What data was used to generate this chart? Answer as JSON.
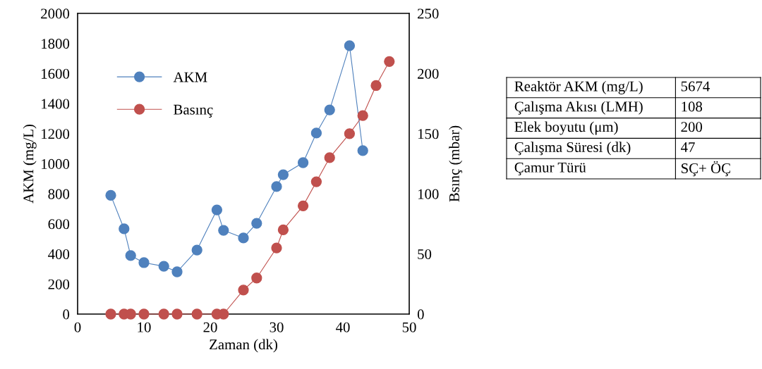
{
  "chart_data": [
    {
      "type": "line",
      "xlabel": "Zaman (dk)",
      "ylabel": "AKM (mg/L)",
      "y2label": "Bsınç (mbar)",
      "xlim": [
        0,
        50
      ],
      "xticks": [
        0,
        10,
        20,
        30,
        40,
        50
      ],
      "ylim": [
        0,
        2000
      ],
      "yticks": [
        0,
        200,
        400,
        600,
        800,
        1000,
        1200,
        1400,
        1600,
        1800,
        2000
      ],
      "y2lim": [
        0,
        250
      ],
      "y2ticks": [
        0,
        50,
        100,
        150,
        200,
        250
      ],
      "marker": "circle",
      "line_style": "solid",
      "grid": false,
      "legend": "top left",
      "series": [
        {
          "name": "AKM",
          "color": "#4f81bd",
          "x": [
            5,
            7,
            8,
            10,
            13,
            15,
            18,
            21,
            22,
            25,
            27,
            30,
            31,
            34,
            36,
            38,
            41,
            43
          ],
          "values": [
            790,
            567,
            389,
            342,
            318,
            281,
            426,
            693,
            557,
            506,
            604,
            848,
            927,
            1007,
            1204,
            1358,
            1785,
            1087
          ]
        },
        {
          "name": "Basınç",
          "color": "#c0504d",
          "axis": "y2",
          "x": [
            5,
            7,
            8,
            10,
            13,
            15,
            18,
            21,
            22,
            25,
            27,
            30,
            31,
            34,
            36,
            38,
            41,
            43,
            45,
            47
          ],
          "values": [
            0,
            0,
            0,
            0,
            0,
            0,
            0,
            0,
            0,
            20,
            30,
            55,
            70,
            90,
            110,
            130,
            150,
            165,
            190,
            210
          ]
        }
      ]
    },
    {
      "type": "other",
      "annotations": [
        "Reaktör AKM (mg/L)",
        "5674",
        "Çalışma Akısı (LMH)",
        "108",
        "Elek boyutu (μm)",
        "200",
        "Çalışma Süresi (dk)",
        "47",
        "Çamur Türü",
        "SÇ+ ÖÇ"
      ]
    }
  ]
}
